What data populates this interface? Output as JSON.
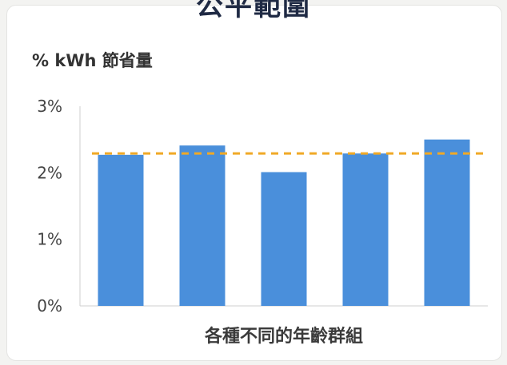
{
  "chart_data": {
    "type": "bar",
    "title": "公平範圍",
    "ylabel": "% kWh 節省量",
    "xlabel": "各種不同的年齡群組",
    "categories": [
      "",
      "",
      "",
      "",
      ""
    ],
    "values": [
      2.27,
      2.41,
      2.01,
      2.29,
      2.5
    ],
    "reference_line": 2.29,
    "ylim": [
      0,
      3
    ],
    "yticks": [
      "0%",
      "1%",
      "2%",
      "3%"
    ],
    "bar_color": "#4a8fdb",
    "reference_color": "#f0a926",
    "grid": false
  }
}
